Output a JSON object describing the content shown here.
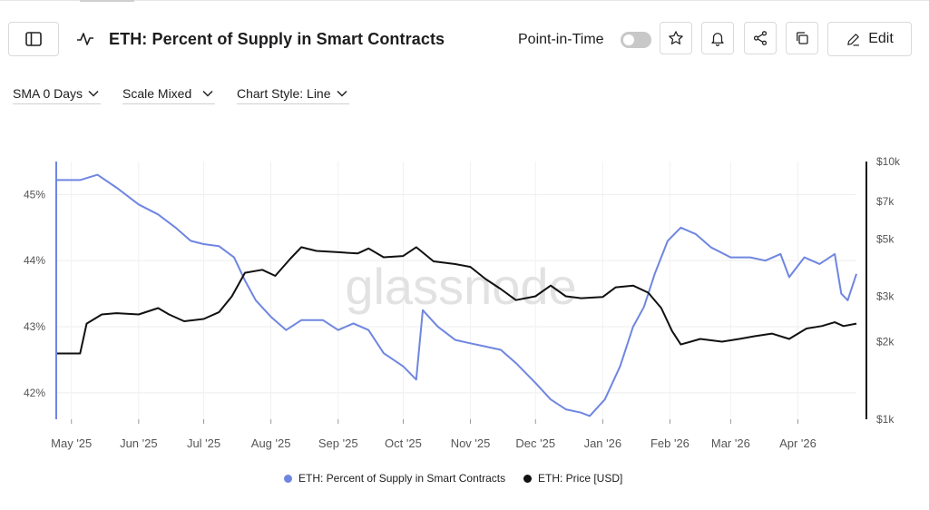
{
  "header": {
    "title": "ETH: Percent of Supply in Smart Contracts",
    "point_in_time_label": "Point-in-Time",
    "edit_label": "Edit"
  },
  "controls": {
    "sma": "SMA 0 Days",
    "scale": "Scale Mixed",
    "chart_style": "Chart Style: Line"
  },
  "watermark": "glassnode",
  "chart_data": {
    "type": "line",
    "x_labels": [
      "May '25",
      "Jun '25",
      "Jul '25",
      "Aug '25",
      "Sep '25",
      "Oct '25",
      "Nov '25",
      "Dec '25",
      "Jan '26",
      "Feb '26",
      "Mar '26",
      "Apr '26"
    ],
    "y_left": {
      "ticks": [
        "42%",
        "43%",
        "44%",
        "45%"
      ],
      "range": [
        41.6,
        45.5
      ]
    },
    "y_right": {
      "ticks": [
        "$1k",
        "$2k",
        "$3k",
        "$5k",
        "$7k",
        "$10k"
      ],
      "scale": "log"
    },
    "grid": true,
    "legend_position": "bottom",
    "colors": {
      "supply": "#6f86e0",
      "price": "#111111"
    },
    "series": [
      {
        "name": "ETH: Percent of Supply in Smart Contracts",
        "axis": "left",
        "points": [
          [
            "2025-04-24",
            45.22
          ],
          [
            "2025-05-05",
            45.22
          ],
          [
            "2025-05-13",
            45.3
          ],
          [
            "2025-05-22",
            45.1
          ],
          [
            "2025-06-01",
            44.85
          ],
          [
            "2025-06-10",
            44.7
          ],
          [
            "2025-06-18",
            44.5
          ],
          [
            "2025-06-25",
            44.3
          ],
          [
            "2025-07-01",
            44.25
          ],
          [
            "2025-07-08",
            44.22
          ],
          [
            "2025-07-15",
            44.05
          ],
          [
            "2025-07-20",
            43.7
          ],
          [
            "2025-07-25",
            43.4
          ],
          [
            "2025-08-01",
            43.15
          ],
          [
            "2025-08-08",
            42.95
          ],
          [
            "2025-08-15",
            43.1
          ],
          [
            "2025-08-25",
            43.1
          ],
          [
            "2025-09-01",
            42.95
          ],
          [
            "2025-09-08",
            43.05
          ],
          [
            "2025-09-15",
            42.95
          ],
          [
            "2025-09-22",
            42.6
          ],
          [
            "2025-10-01",
            42.4
          ],
          [
            "2025-10-07",
            42.2
          ],
          [
            "2025-10-10",
            43.25
          ],
          [
            "2025-10-17",
            43.0
          ],
          [
            "2025-10-25",
            42.8
          ],
          [
            "2025-11-01",
            42.75
          ],
          [
            "2025-11-08",
            42.7
          ],
          [
            "2025-11-15",
            42.65
          ],
          [
            "2025-11-22",
            42.45
          ],
          [
            "2025-12-01",
            42.15
          ],
          [
            "2025-12-08",
            41.9
          ],
          [
            "2025-12-15",
            41.75
          ],
          [
            "2025-12-22",
            41.7
          ],
          [
            "2025-12-26",
            41.65
          ],
          [
            "2026-01-02",
            41.9
          ],
          [
            "2026-01-09",
            42.4
          ],
          [
            "2026-01-15",
            43.0
          ],
          [
            "2026-01-20",
            43.3
          ],
          [
            "2026-01-25",
            43.8
          ],
          [
            "2026-01-31",
            44.3
          ],
          [
            "2026-02-06",
            44.5
          ],
          [
            "2026-02-13",
            44.4
          ],
          [
            "2026-02-20",
            44.2
          ],
          [
            "2026-03-01",
            44.05
          ],
          [
            "2026-03-10",
            44.05
          ],
          [
            "2026-03-17",
            44.0
          ],
          [
            "2026-03-24",
            44.1
          ],
          [
            "2026-03-28",
            43.75
          ],
          [
            "2026-04-04",
            44.05
          ],
          [
            "2026-04-11",
            43.95
          ],
          [
            "2026-04-18",
            44.1
          ],
          [
            "2026-04-21",
            43.5
          ],
          [
            "2026-04-24",
            43.4
          ],
          [
            "2026-04-28",
            43.8
          ]
        ]
      },
      {
        "name": "ETH: Price [USD]",
        "axis": "right",
        "points": [
          [
            "2025-04-24",
            1800
          ],
          [
            "2025-05-05",
            1800
          ],
          [
            "2025-05-08",
            2350
          ],
          [
            "2025-05-15",
            2550
          ],
          [
            "2025-05-22",
            2580
          ],
          [
            "2025-06-01",
            2550
          ],
          [
            "2025-06-10",
            2700
          ],
          [
            "2025-06-15",
            2550
          ],
          [
            "2025-06-22",
            2400
          ],
          [
            "2025-07-01",
            2450
          ],
          [
            "2025-07-08",
            2600
          ],
          [
            "2025-07-14",
            3000
          ],
          [
            "2025-07-20",
            3700
          ],
          [
            "2025-07-28",
            3800
          ],
          [
            "2025-08-03",
            3600
          ],
          [
            "2025-08-10",
            4200
          ],
          [
            "2025-08-15",
            4650
          ],
          [
            "2025-08-22",
            4500
          ],
          [
            "2025-09-01",
            4450
          ],
          [
            "2025-09-10",
            4400
          ],
          [
            "2025-09-15",
            4600
          ],
          [
            "2025-09-22",
            4250
          ],
          [
            "2025-10-01",
            4300
          ],
          [
            "2025-10-07",
            4650
          ],
          [
            "2025-10-15",
            4100
          ],
          [
            "2025-10-25",
            4000
          ],
          [
            "2025-11-01",
            3900
          ],
          [
            "2025-11-08",
            3500
          ],
          [
            "2025-11-15",
            3200
          ],
          [
            "2025-11-22",
            2900
          ],
          [
            "2025-12-01",
            3000
          ],
          [
            "2025-12-08",
            3300
          ],
          [
            "2025-12-15",
            3000
          ],
          [
            "2025-12-22",
            2950
          ],
          [
            "2026-01-01",
            2980
          ],
          [
            "2026-01-07",
            3250
          ],
          [
            "2026-01-15",
            3300
          ],
          [
            "2026-01-22",
            3100
          ],
          [
            "2026-01-28",
            2700
          ],
          [
            "2026-02-02",
            2200
          ],
          [
            "2026-02-06",
            1950
          ],
          [
            "2026-02-15",
            2050
          ],
          [
            "2026-02-25",
            2000
          ],
          [
            "2026-03-05",
            2050
          ],
          [
            "2026-03-12",
            2100
          ],
          [
            "2026-03-20",
            2150
          ],
          [
            "2026-03-28",
            2050
          ],
          [
            "2026-04-05",
            2250
          ],
          [
            "2026-04-12",
            2300
          ],
          [
            "2026-04-18",
            2380
          ],
          [
            "2026-04-22",
            2300
          ],
          [
            "2026-04-28",
            2350
          ]
        ]
      }
    ]
  },
  "legend": {
    "supply_label": "ETH: Percent of Supply in Smart Contracts",
    "price_label": "ETH: Price [USD]"
  }
}
